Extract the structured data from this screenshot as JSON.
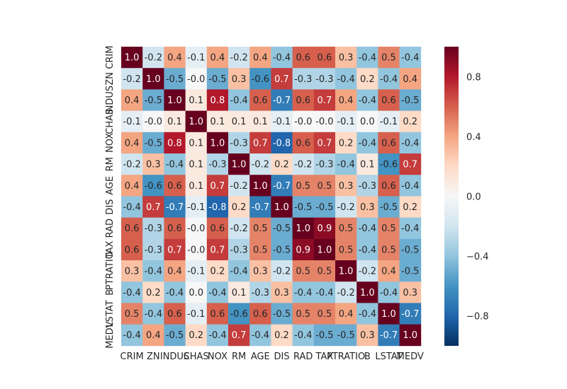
{
  "chart_data": {
    "type": "heatmap",
    "title": "",
    "xlabel": "",
    "ylabel": "",
    "x_labels": [
      "CRIM",
      "ZN",
      "INDUS",
      "CHAS",
      "NOX",
      "RM",
      "AGE",
      "DIS",
      "RAD",
      "TAX",
      "PTRATIO",
      "B",
      "LSTAT",
      "MEDV"
    ],
    "y_labels": [
      "CRIM",
      "ZN",
      "INDUS",
      "CHAS",
      "NOX",
      "RM",
      "AGE",
      "DIS",
      "RAD",
      "TAX",
      "PTRATIO",
      "B",
      "LSTAT",
      "MEDV"
    ],
    "values": [
      [
        1.0,
        -0.2,
        0.4,
        -0.1,
        0.4,
        -0.2,
        0.4,
        -0.4,
        0.6,
        0.6,
        0.3,
        -0.4,
        0.5,
        -0.4
      ],
      [
        -0.2,
        1.0,
        -0.5,
        -0.0,
        -0.5,
        0.3,
        -0.6,
        0.7,
        -0.3,
        -0.3,
        -0.4,
        0.2,
        -0.4,
        0.4
      ],
      [
        0.4,
        -0.5,
        1.0,
        0.1,
        0.8,
        -0.4,
        0.6,
        -0.7,
        0.6,
        0.7,
        0.4,
        -0.4,
        0.6,
        -0.5
      ],
      [
        -0.1,
        -0.0,
        0.1,
        1.0,
        0.1,
        0.1,
        0.1,
        -0.1,
        -0.0,
        -0.0,
        -0.1,
        0.0,
        -0.1,
        0.2
      ],
      [
        0.4,
        -0.5,
        0.8,
        0.1,
        1.0,
        -0.3,
        0.7,
        -0.8,
        0.6,
        0.7,
        0.2,
        -0.4,
        0.6,
        -0.4
      ],
      [
        -0.2,
        0.3,
        -0.4,
        0.1,
        -0.3,
        1.0,
        -0.2,
        0.2,
        -0.2,
        -0.3,
        -0.4,
        0.1,
        -0.6,
        0.7
      ],
      [
        0.4,
        -0.6,
        0.6,
        0.1,
        0.7,
        -0.2,
        1.0,
        -0.7,
        0.5,
        0.5,
        0.3,
        -0.3,
        0.6,
        -0.4
      ],
      [
        -0.4,
        0.7,
        -0.7,
        -0.1,
        -0.8,
        0.2,
        -0.7,
        1.0,
        -0.5,
        -0.5,
        -0.2,
        0.3,
        -0.5,
        0.2
      ],
      [
        0.6,
        -0.3,
        0.6,
        -0.0,
        0.6,
        -0.2,
        0.5,
        -0.5,
        1.0,
        0.9,
        0.5,
        -0.4,
        0.5,
        -0.4
      ],
      [
        0.6,
        -0.3,
        0.7,
        -0.0,
        0.7,
        -0.3,
        0.5,
        -0.5,
        0.9,
        1.0,
        0.5,
        -0.4,
        0.5,
        -0.5
      ],
      [
        0.3,
        -0.4,
        0.4,
        -0.1,
        0.2,
        -0.4,
        0.3,
        -0.2,
        0.5,
        0.5,
        1.0,
        -0.2,
        0.4,
        -0.5
      ],
      [
        -0.4,
        0.2,
        -0.4,
        0.0,
        -0.4,
        0.1,
        -0.3,
        0.3,
        -0.4,
        -0.4,
        -0.2,
        1.0,
        -0.4,
        0.3
      ],
      [
        0.5,
        -0.4,
        0.6,
        -0.1,
        0.6,
        -0.6,
        0.6,
        -0.5,
        0.5,
        0.5,
        0.4,
        -0.4,
        1.0,
        -0.7
      ],
      [
        -0.4,
        0.4,
        -0.5,
        0.2,
        -0.4,
        0.7,
        -0.4,
        0.2,
        -0.4,
        -0.5,
        -0.5,
        0.3,
        -0.7,
        1.0
      ]
    ],
    "colorbar": {
      "colormap": "RdBu_r",
      "vmin": -1.0,
      "vmax": 1.0,
      "ticks": [
        0.8,
        0.4,
        0.0,
        -0.4,
        -0.8
      ],
      "tick_labels": [
        "0.8",
        "0.4",
        "0.0",
        "−0.4",
        "−0.8"
      ]
    },
    "annotations": "cell values shown with one decimal",
    "grid": false,
    "legend": "colorbar-right"
  }
}
